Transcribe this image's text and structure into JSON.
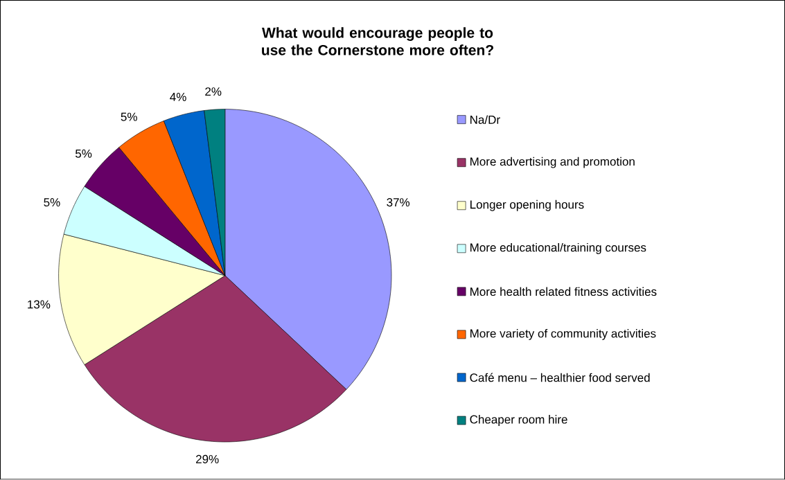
{
  "chart_data": {
    "type": "pie",
    "title": "What would encourage people to use the Cornerstone more often?",
    "categories": [
      "Na/Dr",
      "More advertising and promotion",
      "Longer opening hours",
      "More educational/training courses",
      "More health related fitness activities",
      "More variety of community activities",
      "Café menu – healthier food served",
      "Cheaper room hire"
    ],
    "values": [
      37,
      29,
      13,
      5,
      5,
      5,
      4,
      2
    ],
    "value_labels": [
      "37%",
      "29%",
      "13%",
      "5%",
      "5%",
      "5%",
      "4%",
      "2%"
    ],
    "colors": [
      "#9999ff",
      "#993366",
      "#ffffcc",
      "#ccffff",
      "#660066",
      "#ff6600",
      "#0066cc",
      "#008080"
    ],
    "legend": "right"
  }
}
